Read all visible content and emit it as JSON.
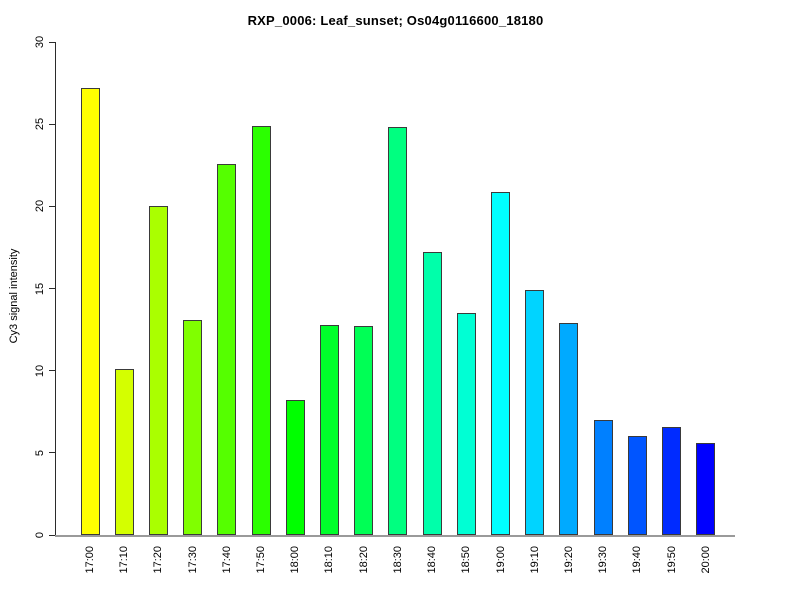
{
  "figure": {
    "background": "#FFFFFF",
    "text_color": "#000000"
  },
  "chart_data": {
    "type": "bar",
    "title": "RXP_0006: Leaf_sunset; Os04g0116600_18180",
    "xlabel": "",
    "ylabel": "Cy3 signal intensity",
    "categories": [
      "17:00",
      "17:10",
      "17:20",
      "17:30",
      "17:40",
      "17:50",
      "18:00",
      "18:10",
      "18:20",
      "18:30",
      "18:40",
      "18:50",
      "19:00",
      "19:10",
      "19:20",
      "19:30",
      "19:40",
      "19:50",
      "20:00"
    ],
    "values": [
      27.2,
      10.1,
      20.0,
      13.1,
      22.6,
      24.9,
      8.2,
      12.8,
      12.7,
      24.8,
      17.2,
      13.5,
      20.9,
      14.9,
      12.9,
      7.0,
      6.0,
      6.6,
      5.6
    ],
    "bar_colors": [
      "#FFFF00",
      "#D4FF00",
      "#AAFF00",
      "#80FF00",
      "#55FF00",
      "#2BFF00",
      "#00FF00",
      "#00FF2B",
      "#00FF55",
      "#00FF80",
      "#00FFAA",
      "#00FFD4",
      "#00FFFF",
      "#00D4FF",
      "#00AAFF",
      "#0080FF",
      "#0055FF",
      "#002BFF",
      "#0000FF"
    ],
    "ylim": [
      0,
      30
    ],
    "yticks": [
      0,
      5,
      10,
      15,
      20,
      25,
      30
    ],
    "grid": false,
    "legend_position": "none",
    "x_tick_label_rotation": -90,
    "y_tick_label_rotation": -90,
    "bar_border_color": "#3a3a3a",
    "y_axis_color": "#2b2b2b",
    "baseline_color": "#9a9a9a"
  }
}
